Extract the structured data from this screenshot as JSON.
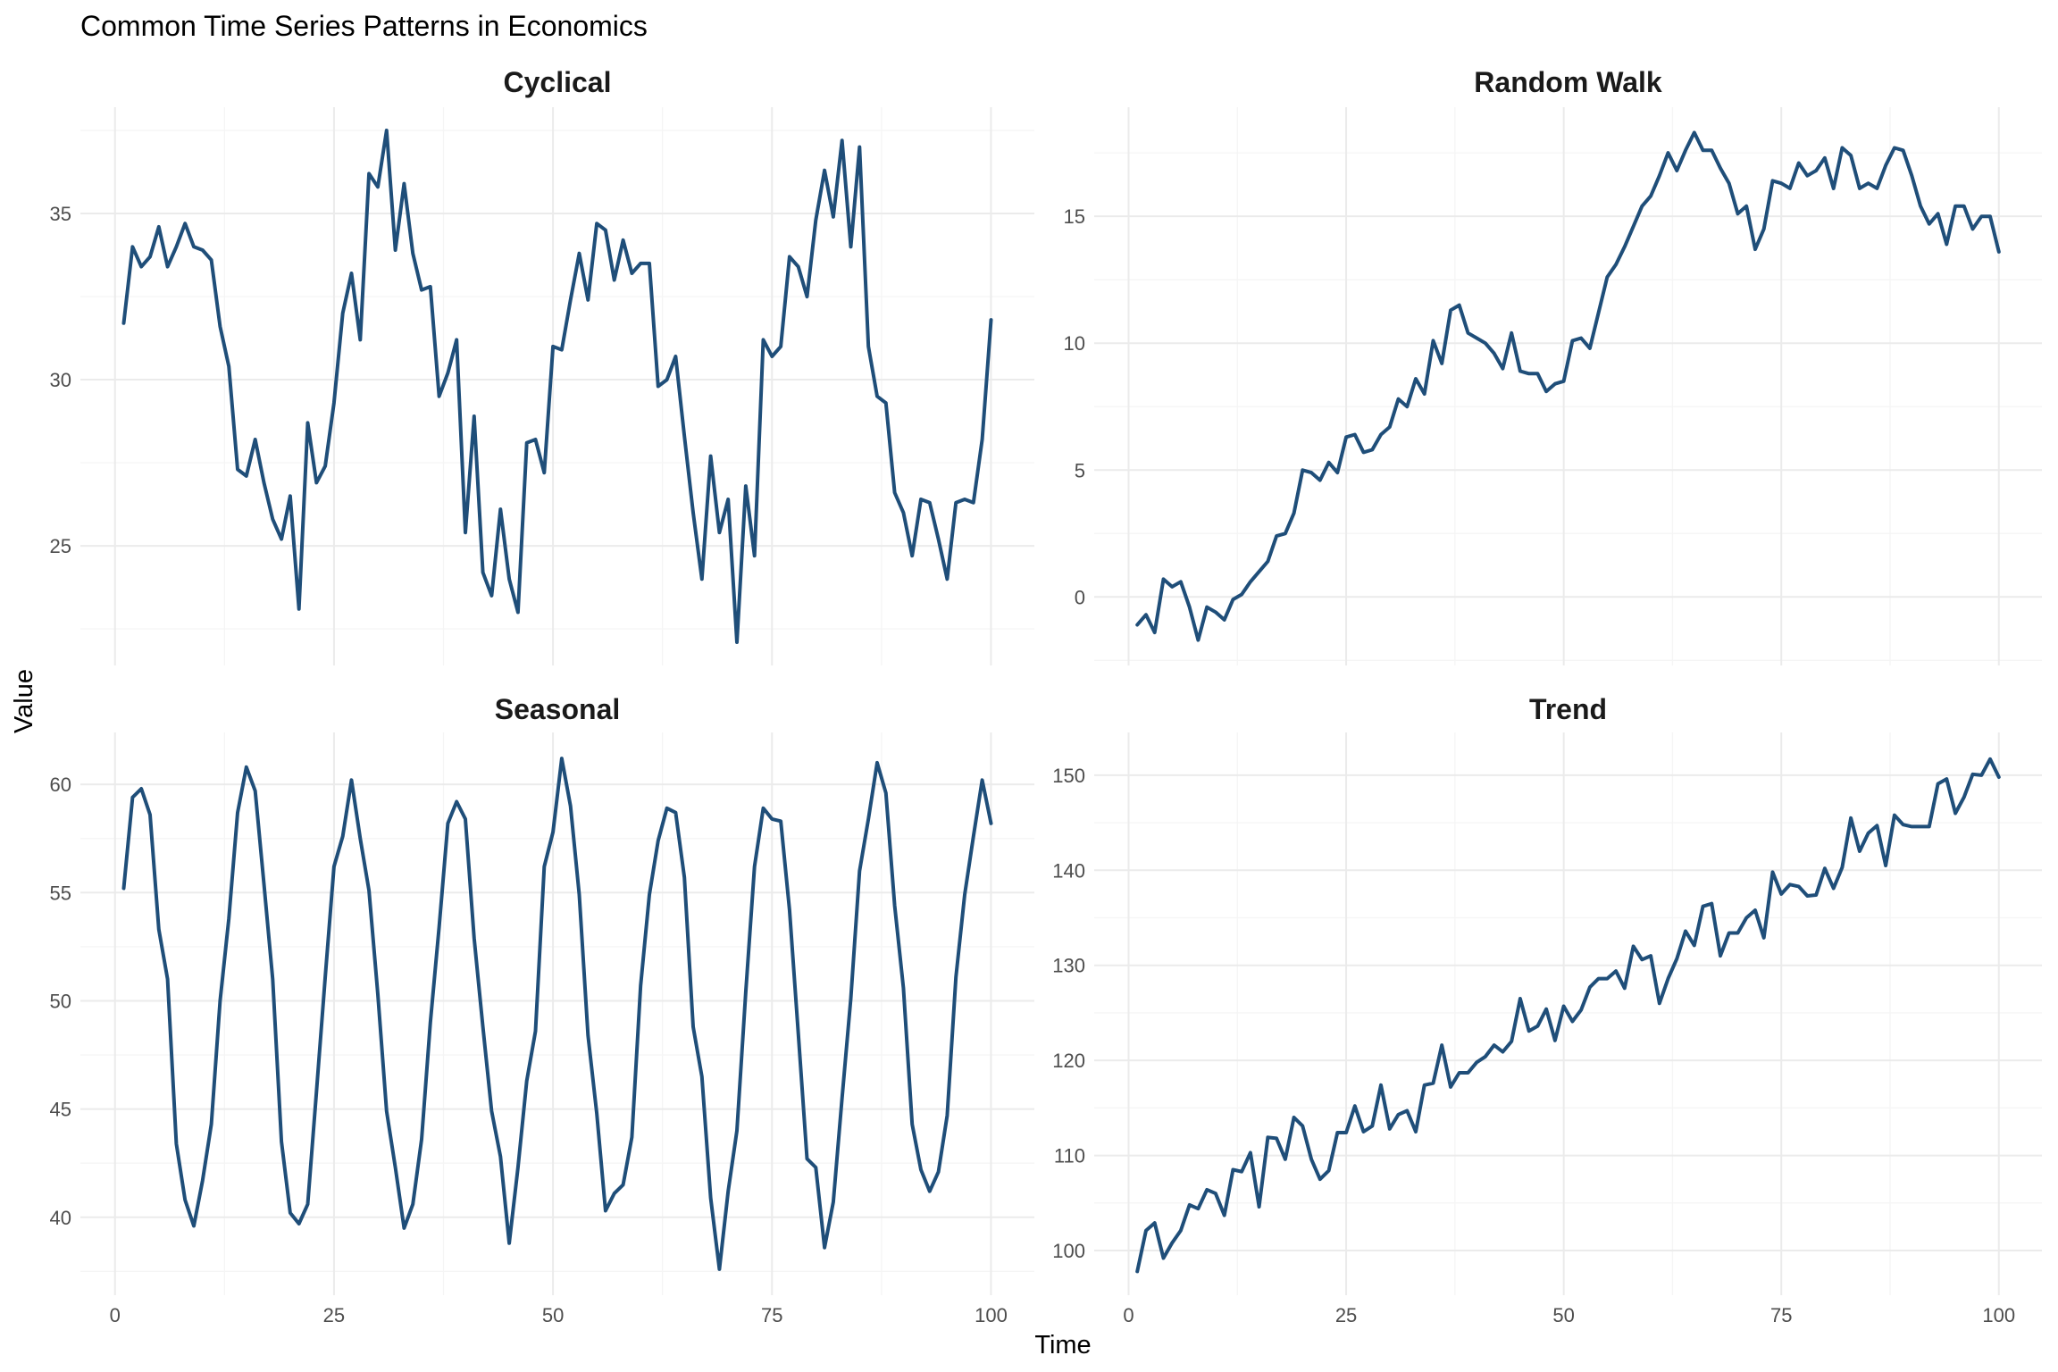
{
  "title": "Common Time Series Patterns in Economics",
  "xlabel": "Time",
  "ylabel": "Value",
  "line_color": "#1f4e79",
  "chart_data": [
    {
      "type": "line",
      "title": "Cyclical",
      "x": [
        1,
        2,
        3,
        4,
        5,
        6,
        7,
        8,
        9,
        10,
        11,
        12,
        13,
        14,
        15,
        16,
        17,
        18,
        19,
        20,
        21,
        22,
        23,
        24,
        25,
        26,
        27,
        28,
        29,
        30,
        31,
        32,
        33,
        34,
        35,
        36,
        37,
        38,
        39,
        40,
        41,
        42,
        43,
        44,
        45,
        46,
        47,
        48,
        49,
        50,
        51,
        52,
        53,
        54,
        55,
        56,
        57,
        58,
        59,
        60,
        61,
        62,
        63,
        64,
        65,
        66,
        67,
        68,
        69,
        70,
        71,
        72,
        73,
        74,
        75,
        76,
        77,
        78,
        79,
        80,
        81,
        82,
        83,
        84,
        85,
        86,
        87,
        88,
        89,
        90,
        91,
        92,
        93,
        94,
        95,
        96,
        97,
        98,
        99,
        100
      ],
      "values": [
        31.7,
        34.0,
        33.4,
        33.7,
        34.6,
        33.4,
        34.0,
        34.7,
        34.0,
        33.9,
        33.6,
        31.6,
        30.4,
        27.3,
        27.1,
        28.2,
        26.9,
        25.8,
        25.2,
        26.5,
        23.1,
        28.7,
        26.9,
        27.4,
        29.3,
        32.0,
        33.2,
        31.2,
        36.2,
        35.8,
        37.5,
        33.9,
        35.9,
        33.8,
        32.7,
        32.8,
        29.5,
        30.2,
        31.2,
        25.4,
        28.9,
        24.2,
        23.5,
        26.1,
        24.0,
        23.0,
        28.1,
        28.2,
        27.2,
        31.0,
        30.9,
        32.4,
        33.8,
        32.4,
        34.7,
        34.5,
        33.0,
        34.2,
        33.2,
        33.5,
        33.5,
        29.8,
        30.0,
        30.7,
        28.3,
        26.0,
        24.0,
        27.7,
        25.4,
        26.4,
        22.1,
        26.8,
        24.7,
        31.2,
        30.7,
        31.0,
        33.7,
        33.4,
        32.5,
        34.8,
        36.3,
        34.9,
        37.2,
        34.0,
        37.0,
        31.0,
        29.5,
        29.3,
        26.6,
        26.0,
        24.7,
        26.4,
        26.3,
        25.2,
        24.0,
        26.3,
        26.4,
        26.3,
        28.2,
        31.8
      ],
      "xlim": [
        -3.95,
        104.95
      ],
      "ylim": [
        21.4,
        38.2
      ],
      "x_ticks": [
        0,
        25,
        50,
        75,
        100
      ],
      "y_ticks": [
        25,
        30,
        35
      ],
      "y_tick_labels": [
        "25",
        "30",
        "35"
      ]
    },
    {
      "type": "line",
      "title": "Random Walk",
      "x": [
        1,
        2,
        3,
        4,
        5,
        6,
        7,
        8,
        9,
        10,
        11,
        12,
        13,
        14,
        15,
        16,
        17,
        18,
        19,
        20,
        21,
        22,
        23,
        24,
        25,
        26,
        27,
        28,
        29,
        30,
        31,
        32,
        33,
        34,
        35,
        36,
        37,
        38,
        39,
        40,
        41,
        42,
        43,
        44,
        45,
        46,
        47,
        48,
        49,
        50,
        51,
        52,
        53,
        54,
        55,
        56,
        57,
        58,
        59,
        60,
        61,
        62,
        63,
        64,
        65,
        66,
        67,
        68,
        69,
        70,
        71,
        72,
        73,
        74,
        75,
        76,
        77,
        78,
        79,
        80,
        81,
        82,
        83,
        84,
        85,
        86,
        87,
        88,
        89,
        90,
        91,
        92,
        93,
        94,
        95,
        96,
        97,
        98,
        99,
        100
      ],
      "values": [
        -1.1,
        -0.7,
        -1.4,
        0.7,
        0.4,
        0.6,
        -0.4,
        -1.7,
        -0.4,
        -0.6,
        -0.9,
        -0.1,
        0.1,
        0.6,
        1.0,
        1.4,
        2.4,
        2.5,
        3.3,
        5.0,
        4.9,
        4.6,
        5.3,
        4.9,
        6.3,
        6.4,
        5.7,
        5.8,
        6.4,
        6.7,
        7.8,
        7.5,
        8.6,
        8.0,
        10.1,
        9.2,
        11.3,
        11.5,
        10.4,
        10.2,
        10.0,
        9.6,
        9.0,
        10.4,
        8.9,
        8.8,
        8.8,
        8.1,
        8.4,
        8.5,
        10.1,
        10.2,
        9.8,
        11.2,
        12.6,
        13.1,
        13.8,
        14.6,
        15.4,
        15.8,
        16.6,
        17.5,
        16.8,
        17.6,
        18.3,
        17.6,
        17.6,
        16.9,
        16.3,
        15.1,
        15.4,
        13.7,
        14.5,
        16.4,
        16.3,
        16.1,
        17.1,
        16.6,
        16.8,
        17.3,
        16.1,
        17.7,
        17.4,
        16.1,
        16.3,
        16.1,
        17.0,
        17.7,
        17.6,
        16.6,
        15.4,
        14.7,
        15.1,
        13.9,
        15.4,
        15.4,
        14.5,
        15.0,
        15.0,
        13.6
      ],
      "xlim": [
        -3.95,
        104.95
      ],
      "ylim": [
        -2.7,
        19.3
      ],
      "x_ticks": [
        0,
        25,
        50,
        75,
        100
      ],
      "y_ticks": [
        0,
        5,
        10,
        15
      ],
      "y_tick_labels": [
        "0",
        "5",
        "10",
        "15"
      ]
    },
    {
      "type": "line",
      "title": "Seasonal",
      "x": [
        1,
        2,
        3,
        4,
        5,
        6,
        7,
        8,
        9,
        10,
        11,
        12,
        13,
        14,
        15,
        16,
        17,
        18,
        19,
        20,
        21,
        22,
        23,
        24,
        25,
        26,
        27,
        28,
        29,
        30,
        31,
        32,
        33,
        34,
        35,
        36,
        37,
        38,
        39,
        40,
        41,
        42,
        43,
        44,
        45,
        46,
        47,
        48,
        49,
        50,
        51,
        52,
        53,
        54,
        55,
        56,
        57,
        58,
        59,
        60,
        61,
        62,
        63,
        64,
        65,
        66,
        67,
        68,
        69,
        70,
        71,
        72,
        73,
        74,
        75,
        76,
        77,
        78,
        79,
        80,
        81,
        82,
        83,
        84,
        85,
        86,
        87,
        88,
        89,
        90,
        91,
        92,
        93,
        94,
        95,
        96,
        97,
        98,
        99,
        100
      ],
      "values": [
        55.2,
        59.4,
        59.8,
        58.6,
        53.3,
        51.0,
        43.4,
        40.8,
        39.6,
        41.7,
        44.3,
        50.0,
        53.8,
        58.7,
        60.8,
        59.7,
        55.4,
        51.0,
        43.5,
        40.2,
        39.7,
        40.6,
        45.8,
        51.1,
        56.2,
        57.6,
        60.2,
        57.5,
        55.1,
        50.3,
        44.9,
        42.3,
        39.5,
        40.6,
        43.6,
        49.0,
        53.4,
        58.2,
        59.2,
        58.4,
        52.9,
        48.8,
        44.9,
        42.8,
        38.8,
        42.3,
        46.3,
        48.6,
        56.2,
        57.8,
        61.2,
        59.0,
        54.9,
        48.4,
        44.8,
        40.3,
        41.1,
        41.5,
        43.7,
        50.7,
        54.9,
        57.4,
        58.9,
        58.7,
        55.7,
        48.8,
        46.5,
        40.9,
        37.6,
        41.2,
        44.0,
        50.4,
        56.2,
        58.9,
        58.4,
        58.3,
        54.2,
        48.5,
        42.7,
        42.3,
        38.6,
        40.7,
        45.5,
        50.1,
        56.0,
        58.4,
        61.0,
        59.6,
        54.4,
        50.6,
        44.3,
        42.2,
        41.2,
        42.1,
        44.7,
        51.1,
        54.9,
        57.6,
        60.2,
        58.2
      ],
      "xlim": [
        -3.95,
        104.95
      ],
      "ylim": [
        36.4,
        62.4
      ],
      "x_ticks": [
        0,
        25,
        50,
        75,
        100
      ],
      "y_ticks": [
        40,
        45,
        50,
        55,
        60
      ],
      "y_tick_labels": [
        "40",
        "45",
        "50",
        "55",
        "60"
      ],
      "x_tick_labels": [
        "0",
        "25",
        "50",
        "75",
        "100"
      ]
    },
    {
      "type": "line",
      "title": "Trend",
      "x": [
        1,
        2,
        3,
        4,
        5,
        6,
        7,
        8,
        9,
        10,
        11,
        12,
        13,
        14,
        15,
        16,
        17,
        18,
        19,
        20,
        21,
        22,
        23,
        24,
        25,
        26,
        27,
        28,
        29,
        30,
        31,
        32,
        33,
        34,
        35,
        36,
        37,
        38,
        39,
        40,
        41,
        42,
        43,
        44,
        45,
        46,
        47,
        48,
        49,
        50,
        51,
        52,
        53,
        54,
        55,
        56,
        57,
        58,
        59,
        60,
        61,
        62,
        63,
        64,
        65,
        66,
        67,
        68,
        69,
        70,
        71,
        72,
        73,
        74,
        75,
        76,
        77,
        78,
        79,
        80,
        81,
        82,
        83,
        84,
        85,
        86,
        87,
        88,
        89,
        90,
        91,
        92,
        93,
        94,
        95,
        96,
        97,
        98,
        99,
        100
      ],
      "values": [
        97.8,
        102.1,
        102.9,
        99.2,
        100.8,
        102.1,
        104.8,
        104.4,
        106.4,
        106.0,
        103.7,
        108.5,
        108.3,
        110.3,
        104.6,
        111.9,
        111.8,
        109.6,
        114.0,
        113.1,
        109.6,
        107.5,
        108.4,
        112.4,
        112.4,
        115.2,
        112.5,
        113.1,
        117.4,
        112.8,
        114.3,
        114.7,
        112.5,
        117.4,
        117.6,
        121.6,
        117.2,
        118.7,
        118.7,
        119.8,
        120.4,
        121.6,
        120.9,
        122.0,
        126.5,
        123.1,
        123.6,
        125.4,
        122.1,
        125.7,
        124.1,
        125.3,
        127.7,
        128.6,
        128.6,
        129.4,
        127.6,
        132.0,
        130.6,
        131.0,
        126.0,
        128.6,
        130.7,
        133.6,
        132.1,
        136.2,
        136.5,
        131.0,
        133.4,
        133.4,
        135.0,
        135.8,
        132.9,
        139.8,
        137.5,
        138.5,
        138.3,
        137.3,
        137.4,
        140.2,
        138.1,
        140.3,
        145.5,
        142.0,
        143.9,
        144.7,
        140.5,
        145.8,
        144.8,
        144.6,
        144.6,
        144.6,
        149.1,
        149.6,
        146.0,
        147.7,
        150.1,
        150.0,
        151.7,
        149.8
      ],
      "xlim": [
        -3.95,
        104.95
      ],
      "ylim": [
        95.3,
        154.5
      ],
      "x_ticks": [
        0,
        25,
        50,
        75,
        100
      ],
      "y_ticks": [
        100,
        110,
        120,
        130,
        140,
        150
      ],
      "y_tick_labels": [
        "100",
        "110",
        "120",
        "130",
        "140",
        "150"
      ],
      "x_tick_labels": [
        "0",
        "25",
        "50",
        "75",
        "100"
      ]
    }
  ]
}
